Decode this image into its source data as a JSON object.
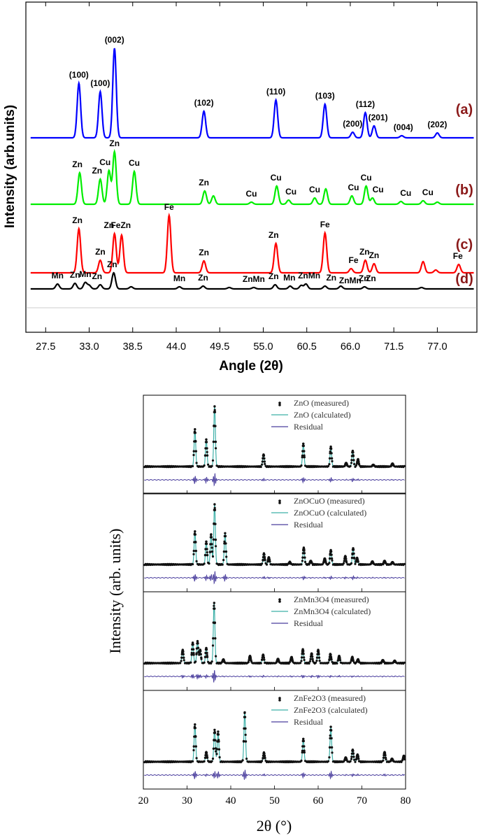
{
  "chart_data": [
    {
      "type": "line",
      "xlabel": "Angle (2θ)",
      "ylabel": "Intensity (arb.units)",
      "xlim": [
        25,
        82
      ],
      "x_ticks": [
        "27.5",
        "33.0",
        "38.5",
        "44.0",
        "49.5",
        "55.0",
        "60.5",
        "66.0",
        "71.5",
        "77.0"
      ],
      "legend": "none",
      "grid": false,
      "series": [
        {
          "name": "(a)",
          "color": "#0000ff",
          "peaks": [
            {
              "x": 31.7,
              "y": 78
            },
            {
              "x": 34.4,
              "y": 66
            },
            {
              "x": 36.2,
              "y": 128
            },
            {
              "x": 47.5,
              "y": 38
            },
            {
              "x": 56.6,
              "y": 54
            },
            {
              "x": 62.8,
              "y": 48
            },
            {
              "x": 66.3,
              "y": 8
            },
            {
              "x": 67.9,
              "y": 36
            },
            {
              "x": 69.0,
              "y": 17
            },
            {
              "x": 72.5,
              "y": 3
            },
            {
              "x": 77.0,
              "y": 7
            }
          ],
          "labels": [
            {
              "text": "(100)",
              "x": 31.7
            },
            {
              "text": "(100)",
              "x": 34.4
            },
            {
              "text": "(002)",
              "x": 36.2
            },
            {
              "text": "(102)",
              "x": 47.5
            },
            {
              "text": "(110)",
              "x": 56.6
            },
            {
              "text": "(103)",
              "x": 62.8
            },
            {
              "text": "(200)",
              "x": 66.3
            },
            {
              "text": "(112)",
              "x": 67.9
            },
            {
              "text": "(201)",
              "x": 69.5
            },
            {
              "text": "(004)",
              "x": 72.7
            },
            {
              "text": "(202)",
              "x": 77.0
            }
          ]
        },
        {
          "name": "(b)",
          "color": "#00ee00",
          "peaks": [
            {
              "x": 31.8,
              "y": 45
            },
            {
              "x": 34.4,
              "y": 36
            },
            {
              "x": 35.5,
              "y": 48
            },
            {
              "x": 36.2,
              "y": 75
            },
            {
              "x": 38.7,
              "y": 47
            },
            {
              "x": 47.6,
              "y": 19
            },
            {
              "x": 48.7,
              "y": 12
            },
            {
              "x": 53.5,
              "y": 3
            },
            {
              "x": 56.7,
              "y": 26
            },
            {
              "x": 58.2,
              "y": 6
            },
            {
              "x": 61.5,
              "y": 9
            },
            {
              "x": 62.9,
              "y": 22
            },
            {
              "x": 66.2,
              "y": 12
            },
            {
              "x": 68.0,
              "y": 26
            },
            {
              "x": 68.8,
              "y": 9
            },
            {
              "x": 72.4,
              "y": 4
            },
            {
              "x": 75.2,
              "y": 5
            },
            {
              "x": 77.0,
              "y": 3
            }
          ],
          "labels": [
            {
              "text": "Zn",
              "x": 31.5
            },
            {
              "text": "Zn",
              "x": 34.0
            },
            {
              "text": "Cu",
              "x": 35.0
            },
            {
              "text": "Zn",
              "x": 36.2
            },
            {
              "text": "Cu",
              "x": 38.7
            },
            {
              "text": "Zn",
              "x": 47.5
            },
            {
              "text": "Cu",
              "x": 53.5
            },
            {
              "text": "Cu",
              "x": 56.6
            },
            {
              "text": "Cu",
              "x": 58.5
            },
            {
              "text": "Cu",
              "x": 61.5
            },
            {
              "text": "Cu",
              "x": 66.4
            },
            {
              "text": "Cu",
              "x": 68.0
            },
            {
              "text": "Cu",
              "x": 69.5
            },
            {
              "text": "Cu",
              "x": 73.0
            },
            {
              "text": "Cu",
              "x": 75.8
            }
          ]
        },
        {
          "name": "(c)",
          "color": "#ff0000",
          "peaks": [
            {
              "x": 31.7,
              "y": 63
            },
            {
              "x": 34.4,
              "y": 18
            },
            {
              "x": 36.2,
              "y": 56
            },
            {
              "x": 37.1,
              "y": 54
            },
            {
              "x": 43.1,
              "y": 82
            },
            {
              "x": 47.5,
              "y": 17
            },
            {
              "x": 56.6,
              "y": 42
            },
            {
              "x": 62.8,
              "y": 57
            },
            {
              "x": 66.1,
              "y": 6
            },
            {
              "x": 67.9,
              "y": 18
            },
            {
              "x": 69.0,
              "y": 13
            },
            {
              "x": 75.2,
              "y": 16
            },
            {
              "x": 76.8,
              "y": 4
            },
            {
              "x": 79.7,
              "y": 12
            }
          ],
          "labels": [
            {
              "text": "Zn",
              "x": 31.5
            },
            {
              "text": "Zn",
              "x": 34.4
            },
            {
              "text": "Zn",
              "x": 35.5
            },
            {
              "text": "FeZn",
              "x": 37.0
            },
            {
              "text": "Fe",
              "x": 43.1
            },
            {
              "text": "Zn",
              "x": 47.5
            },
            {
              "text": "Zn",
              "x": 56.3
            },
            {
              "text": "Fe",
              "x": 62.8
            },
            {
              "text": "Fe",
              "x": 66.4
            },
            {
              "text": "Zn",
              "x": 67.8
            },
            {
              "text": "Zn",
              "x": 69.0
            },
            {
              "text": "Fe",
              "x": 79.6
            }
          ]
        },
        {
          "name": "(d)",
          "color": "#000000",
          "peaks": [
            {
              "x": 29.0,
              "y": 7
            },
            {
              "x": 31.2,
              "y": 8
            },
            {
              "x": 32.5,
              "y": 9
            },
            {
              "x": 33.0,
              "y": 5
            },
            {
              "x": 34.4,
              "y": 6
            },
            {
              "x": 36.1,
              "y": 23
            },
            {
              "x": 38.3,
              "y": 3
            },
            {
              "x": 44.4,
              "y": 3
            },
            {
              "x": 47.4,
              "y": 4
            },
            {
              "x": 50.7,
              "y": 2
            },
            {
              "x": 53.8,
              "y": 2
            },
            {
              "x": 56.5,
              "y": 6
            },
            {
              "x": 58.4,
              "y": 4
            },
            {
              "x": 59.8,
              "y": 5
            },
            {
              "x": 60.4,
              "y": 7
            },
            {
              "x": 62.8,
              "y": 4
            },
            {
              "x": 64.8,
              "y": 4
            },
            {
              "x": 67.8,
              "y": 3
            },
            {
              "x": 75.0,
              "y": 2
            }
          ],
          "labels": [
            {
              "text": "Mn",
              "x": 29.0
            },
            {
              "text": "Zn",
              "x": 31.2
            },
            {
              "text": "Mn",
              "x": 32.5
            },
            {
              "text": "Zn",
              "x": 34.0
            },
            {
              "text": "Zn",
              "x": 35.9
            },
            {
              "text": "Mn",
              "x": 44.4
            },
            {
              "text": "Zn",
              "x": 47.4
            },
            {
              "text": "ZnMn",
              "x": 53.8
            },
            {
              "text": "Zn",
              "x": 56.3
            },
            {
              "text": "Mn",
              "x": 58.3
            },
            {
              "text": "ZnMn",
              "x": 60.8
            },
            {
              "text": "Zn",
              "x": 63.6
            },
            {
              "text": "ZnMn",
              "x": 66.0
            },
            {
              "text": "Zn",
              "x": 67.7
            },
            {
              "text": "Zn",
              "x": 68.6
            }
          ]
        }
      ]
    },
    {
      "type": "scatter",
      "xlabel": "2θ (°)",
      "ylabel": "Intensity (arb. units)",
      "xlim": [
        20,
        80
      ],
      "x_ticks": [
        20,
        30,
        40,
        50,
        60,
        70,
        80
      ],
      "legend": "top-right",
      "grid": false,
      "colors": {
        "measured": "#111111",
        "calculated": "#3fb0a8",
        "residual": "#4b3f9e"
      },
      "panels": [
        {
          "legend": [
            "ZnO (measured)",
            "ZnO (calculated)",
            "Residual"
          ],
          "peaks": [
            {
              "x": 31.8,
              "y": 0.62
            },
            {
              "x": 34.4,
              "y": 0.45
            },
            {
              "x": 36.3,
              "y": 1.0
            },
            {
              "x": 47.5,
              "y": 0.2
            },
            {
              "x": 56.6,
              "y": 0.38
            },
            {
              "x": 62.9,
              "y": 0.33
            },
            {
              "x": 66.4,
              "y": 0.06
            },
            {
              "x": 67.9,
              "y": 0.26
            },
            {
              "x": 69.1,
              "y": 0.12
            },
            {
              "x": 72.6,
              "y": 0.03
            },
            {
              "x": 77.0,
              "y": 0.05
            }
          ]
        },
        {
          "legend": [
            "ZnOCuO (measured)",
            "ZnOCuO (calculated)",
            "Residual"
          ],
          "peaks": [
            {
              "x": 31.8,
              "y": 0.55
            },
            {
              "x": 34.4,
              "y": 0.38
            },
            {
              "x": 35.5,
              "y": 0.5
            },
            {
              "x": 36.3,
              "y": 1.0
            },
            {
              "x": 38.7,
              "y": 0.52
            },
            {
              "x": 47.6,
              "y": 0.18
            },
            {
              "x": 48.7,
              "y": 0.12
            },
            {
              "x": 53.5,
              "y": 0.04
            },
            {
              "x": 56.7,
              "y": 0.28
            },
            {
              "x": 58.3,
              "y": 0.06
            },
            {
              "x": 61.5,
              "y": 0.1
            },
            {
              "x": 62.9,
              "y": 0.24
            },
            {
              "x": 66.2,
              "y": 0.14
            },
            {
              "x": 68.0,
              "y": 0.27
            },
            {
              "x": 68.9,
              "y": 0.11
            },
            {
              "x": 72.4,
              "y": 0.05
            },
            {
              "x": 75.2,
              "y": 0.06
            },
            {
              "x": 77.0,
              "y": 0.04
            }
          ]
        },
        {
          "legend": [
            "ZnMn3O4 (measured)",
            "ZnMn3O4 (calculated)",
            "Residual"
          ],
          "peaks": [
            {
              "x": 29.0,
              "y": 0.22
            },
            {
              "x": 31.3,
              "y": 0.34
            },
            {
              "x": 32.4,
              "y": 0.36
            },
            {
              "x": 33.0,
              "y": 0.22
            },
            {
              "x": 34.4,
              "y": 0.25
            },
            {
              "x": 36.2,
              "y": 1.0
            },
            {
              "x": 38.3,
              "y": 0.06
            },
            {
              "x": 44.4,
              "y": 0.12
            },
            {
              "x": 47.4,
              "y": 0.14
            },
            {
              "x": 50.8,
              "y": 0.07
            },
            {
              "x": 53.9,
              "y": 0.1
            },
            {
              "x": 56.5,
              "y": 0.23
            },
            {
              "x": 58.5,
              "y": 0.16
            },
            {
              "x": 60.0,
              "y": 0.22
            },
            {
              "x": 62.8,
              "y": 0.15
            },
            {
              "x": 64.8,
              "y": 0.12
            },
            {
              "x": 67.8,
              "y": 0.1
            },
            {
              "x": 69.1,
              "y": 0.06
            },
            {
              "x": 74.8,
              "y": 0.05
            },
            {
              "x": 77.5,
              "y": 0.04
            }
          ]
        },
        {
          "legend": [
            "ZnFe2O3 (measured)",
            "ZnFe2O3 (calculated)",
            "Residual"
          ],
          "peaks": [
            {
              "x": 31.8,
              "y": 0.62
            },
            {
              "x": 34.4,
              "y": 0.16
            },
            {
              "x": 36.3,
              "y": 0.53
            },
            {
              "x": 37.1,
              "y": 0.5
            },
            {
              "x": 43.2,
              "y": 0.82
            },
            {
              "x": 47.6,
              "y": 0.15
            },
            {
              "x": 56.6,
              "y": 0.38
            },
            {
              "x": 62.9,
              "y": 0.58
            },
            {
              "x": 66.3,
              "y": 0.07
            },
            {
              "x": 67.9,
              "y": 0.2
            },
            {
              "x": 69.0,
              "y": 0.12
            },
            {
              "x": 75.2,
              "y": 0.16
            },
            {
              "x": 76.9,
              "y": 0.05
            },
            {
              "x": 79.6,
              "y": 0.1
            }
          ]
        }
      ]
    }
  ]
}
